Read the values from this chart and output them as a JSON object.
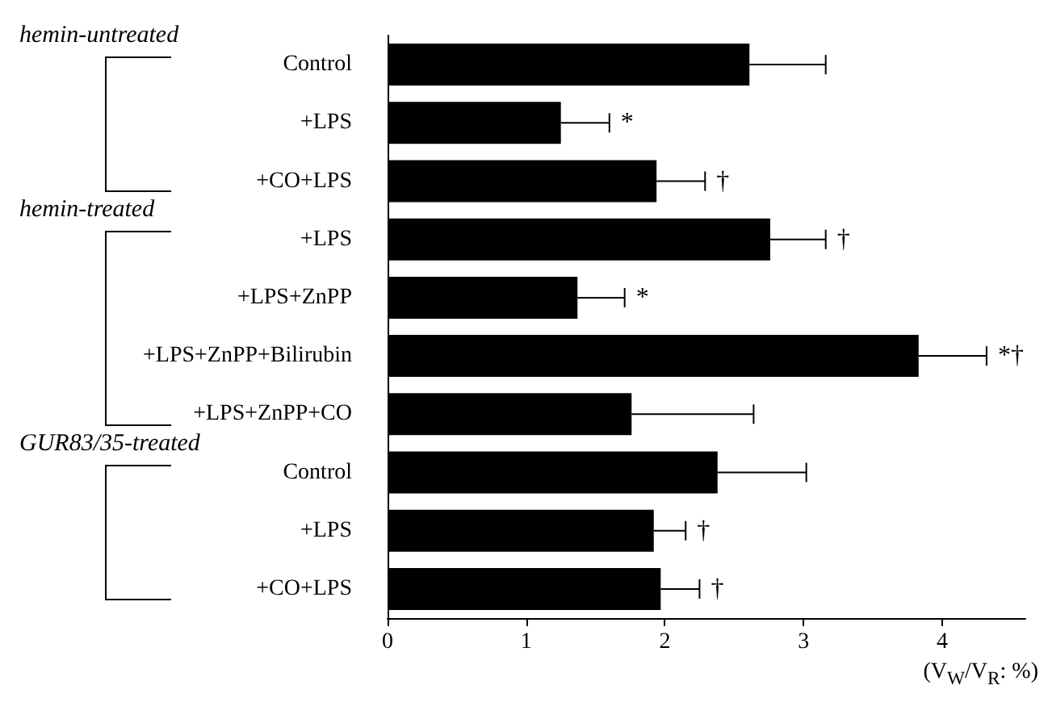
{
  "chart_data": {
    "type": "bar",
    "orientation": "horizontal",
    "categories": [
      "Control",
      "+LPS",
      "+CO+LPS",
      "+LPS",
      "+LPS+ZnPP",
      "+LPS+ZnPP+Bilirubin",
      "+LPS+ZnPP+CO",
      "Control",
      "+LPS",
      "+CO+LPS"
    ],
    "values": [
      2.61,
      1.25,
      1.94,
      2.76,
      1.37,
      3.83,
      1.76,
      2.38,
      1.92,
      1.97
    ],
    "errors": [
      [
        2.61,
        3.16
      ],
      [
        1.25,
        1.6
      ],
      [
        1.94,
        2.29
      ],
      [
        2.76,
        3.16
      ],
      [
        1.37,
        1.71
      ],
      [
        3.83,
        4.32
      ],
      [
        1.76,
        2.64
      ],
      [
        2.38,
        3.02
      ],
      [
        1.92,
        2.15
      ],
      [
        1.97,
        2.25
      ]
    ],
    "value_labels": [
      null,
      "*",
      "†",
      "†",
      "*",
      "*†",
      null,
      null,
      "†",
      "†"
    ],
    "color": "#000000",
    "xlim": [
      0,
      4.6
    ],
    "xticks": [
      0,
      1,
      2,
      3,
      4
    ],
    "xlabel": "(V$_{W}$/V$_{R}$: %)",
    "annotations": [
      "hemin-untreated",
      "hemin-treated",
      "GUR83/35-treated"
    ],
    "grid": false
  }
}
